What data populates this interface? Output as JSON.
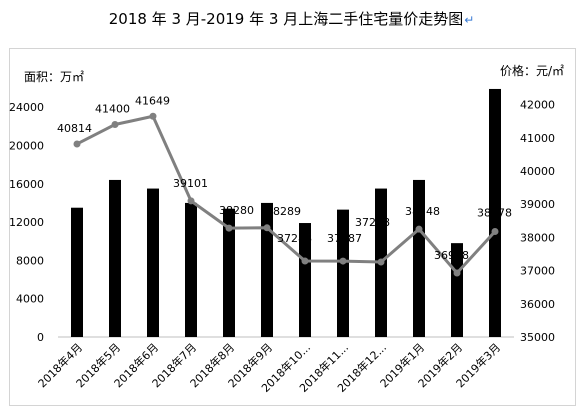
{
  "title": "2018 年 3 月-2019 年 3 月上海二手住宅量价走势图",
  "title_mark": "↵",
  "chart_data": {
    "type": "bar",
    "categories": [
      "2018年4月",
      "2018年5月",
      "2018年6月",
      "2018年7月",
      "2018年8月",
      "2018年9月",
      "2018年10...",
      "2018年11...",
      "2018年12...",
      "2019年1月",
      "2019年2月",
      "2019年3月"
    ],
    "series": [
      {
        "type": "bar",
        "axis": "left",
        "values": [
          13500,
          16400,
          15500,
          14000,
          13400,
          14000,
          11900,
          13300,
          15500,
          16400,
          9800,
          25900
        ],
        "color": "#000000"
      },
      {
        "type": "line",
        "axis": "right",
        "values": [
          40814,
          41400,
          41649,
          39101,
          38280,
          38289,
          37288,
          37287,
          37258,
          38248,
          36928,
          38178
        ],
        "labels": [
          "40814",
          "41400",
          "41649",
          "39101",
          "38280",
          "38289",
          "37288",
          "37287",
          "37258",
          "38248",
          "36928",
          "38178"
        ],
        "color": "#808080"
      }
    ],
    "ylabel": "面积：万㎡",
    "y2label": "价格：元/㎡",
    "ylim": [
      0,
      26000
    ],
    "yticks": [
      "0",
      "4000",
      "8000",
      "12000",
      "16000",
      "20000",
      "24000"
    ],
    "y2lim": [
      35000,
      42500
    ],
    "y2ticks": [
      "35000",
      "36000",
      "37000",
      "38000",
      "39000",
      "40000",
      "41000",
      "42000"
    ],
    "grid": false
  }
}
